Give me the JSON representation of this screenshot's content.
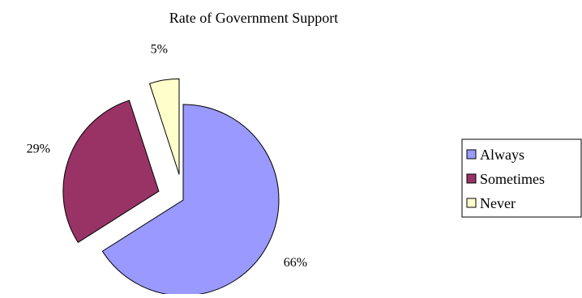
{
  "chart_data": {
    "type": "pie",
    "title": "Rate of Government Support",
    "exploded": true,
    "categories": [
      "Always",
      "Sometimes",
      "Never"
    ],
    "values": [
      66,
      29,
      5
    ],
    "data_labels": [
      "66%",
      "29%",
      "5%"
    ],
    "colors": [
      "#9999ff",
      "#993366",
      "#ffffcc"
    ],
    "legend": {
      "position": "right",
      "entries": [
        "Always",
        "Sometimes",
        "Never"
      ]
    }
  }
}
